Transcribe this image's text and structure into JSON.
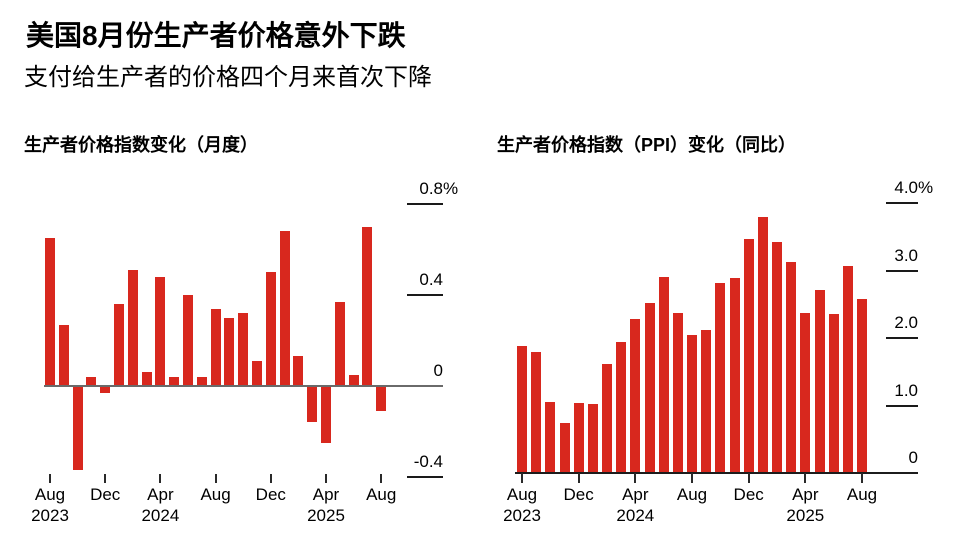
{
  "header": {
    "title": "美国8月份生产者价格意外下跌",
    "subtitle": "支付给生产者的价格四个月来首次下降"
  },
  "colors": {
    "bar": "#d8281e",
    "left_axis": "#6a6a6a",
    "right_axis": "#1c1c1c",
    "text": "#000000"
  },
  "chart_data": [
    {
      "type": "bar",
      "title": "生产者价格指数变化（月度）",
      "unit": "%",
      "x": [
        "Aug 2023",
        "Sep 2023",
        "Oct 2023",
        "Nov 2023",
        "Dec 2023",
        "Jan 2024",
        "Feb 2024",
        "Mar 2024",
        "Apr 2024",
        "May 2024",
        "Jun 2024",
        "Jul 2024",
        "Aug 2024",
        "Sep 2024",
        "Oct 2024",
        "Nov 2024",
        "Dec 2024",
        "Jan 2025",
        "Feb 2025",
        "Mar 2025",
        "Apr 2025",
        "May 2025",
        "Jun 2025",
        "Jul 2025",
        "Aug 2025"
      ],
      "values": [
        0.65,
        0.27,
        -0.37,
        0.04,
        -0.03,
        0.36,
        0.51,
        0.06,
        0.48,
        0.04,
        0.4,
        0.04,
        0.34,
        0.3,
        0.32,
        0.11,
        0.5,
        0.68,
        0.13,
        -0.16,
        -0.25,
        0.37,
        0.05,
        0.7,
        -0.11
      ],
      "ylim": [
        -0.4,
        0.8
      ],
      "grid": false,
      "yticks": [
        {
          "v": 0.8,
          "label": "0.8",
          "suffix": "%"
        },
        {
          "v": 0.4,
          "label": "0.4",
          "suffix": ""
        },
        {
          "v": 0,
          "label": "0",
          "suffix": ""
        },
        {
          "v": -0.4,
          "label": "-0.4",
          "suffix": ""
        }
      ],
      "xticks": [
        {
          "index": 0,
          "label": "Aug",
          "year": "2023"
        },
        {
          "index": 4,
          "label": "Dec",
          "year": ""
        },
        {
          "index": 8,
          "label": "Apr",
          "year": "2024"
        },
        {
          "index": 12,
          "label": "Aug",
          "year": ""
        },
        {
          "index": 16,
          "label": "Dec",
          "year": ""
        },
        {
          "index": 20,
          "label": "Apr",
          "year": "2025"
        },
        {
          "index": 24,
          "label": "Aug",
          "year": ""
        }
      ]
    },
    {
      "type": "bar",
      "title": "生产者价格指数（PPI）变化（同比）",
      "unit": "%",
      "x": [
        "Aug 2023",
        "Sep 2023",
        "Oct 2023",
        "Nov 2023",
        "Dec 2023",
        "Jan 2024",
        "Feb 2024",
        "Mar 2024",
        "Apr 2024",
        "May 2024",
        "Jun 2024",
        "Jul 2024",
        "Aug 2024",
        "Sep 2024",
        "Oct 2024",
        "Nov 2024",
        "Dec 2024",
        "Jan 2025",
        "Feb 2025",
        "Mar 2025",
        "Apr 2025",
        "May 2025",
        "Jun 2025",
        "Jul 2025",
        "Aug 2025"
      ],
      "values": [
        1.88,
        1.79,
        1.05,
        0.74,
        1.04,
        1.02,
        1.61,
        1.94,
        2.28,
        2.52,
        2.9,
        2.37,
        2.04,
        2.12,
        2.81,
        2.89,
        3.47,
        3.79,
        3.42,
        3.13,
        2.37,
        2.71,
        2.36,
        3.07,
        2.58
      ],
      "ylim": [
        0,
        4.0
      ],
      "grid": false,
      "yticks": [
        {
          "v": 4.0,
          "label": "4.0",
          "suffix": "%"
        },
        {
          "v": 3.0,
          "label": "3.0",
          "suffix": ""
        },
        {
          "v": 2.0,
          "label": "2.0",
          "suffix": ""
        },
        {
          "v": 1.0,
          "label": "1.0",
          "suffix": ""
        },
        {
          "v": 0,
          "label": "0",
          "suffix": ""
        }
      ],
      "xticks": [
        {
          "index": 0,
          "label": "Aug",
          "year": "2023"
        },
        {
          "index": 4,
          "label": "Dec",
          "year": ""
        },
        {
          "index": 8,
          "label": "Apr",
          "year": "2024"
        },
        {
          "index": 12,
          "label": "Aug",
          "year": ""
        },
        {
          "index": 16,
          "label": "Dec",
          "year": ""
        },
        {
          "index": 20,
          "label": "Apr",
          "year": "2025"
        },
        {
          "index": 24,
          "label": "Aug",
          "year": ""
        }
      ]
    }
  ]
}
